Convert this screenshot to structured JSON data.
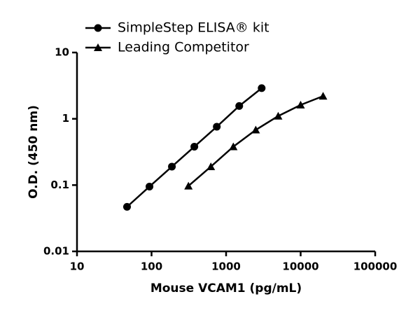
{
  "chart_data": {
    "type": "line",
    "xlabel": "Mouse VCAM1 (pg/mL)",
    "ylabel": "O.D. (450 nm)",
    "xscale": "log",
    "yscale": "log",
    "xlim": [
      10,
      100000
    ],
    "ylim": [
      0.01,
      10
    ],
    "xticks": [
      10,
      100,
      1000,
      10000,
      100000
    ],
    "yticks": [
      0.01,
      0.1,
      1,
      10
    ],
    "legend": "top-left",
    "series": [
      {
        "name": "SimpleStep ELISA® kit",
        "color": "#000000",
        "marker": "circle",
        "x": [
          46.9,
          93.8,
          187.5,
          375,
          750,
          1500,
          3000
        ],
        "values": [
          0.047,
          0.095,
          0.19,
          0.38,
          0.76,
          1.56,
          2.9
        ]
      },
      {
        "name": "Leading Competitor",
        "color": "#000000",
        "marker": "triangle",
        "x": [
          312.5,
          625,
          1250,
          2500,
          5000,
          10000,
          20000
        ],
        "values": [
          0.097,
          0.19,
          0.38,
          0.68,
          1.1,
          1.62,
          2.2
        ]
      }
    ]
  }
}
